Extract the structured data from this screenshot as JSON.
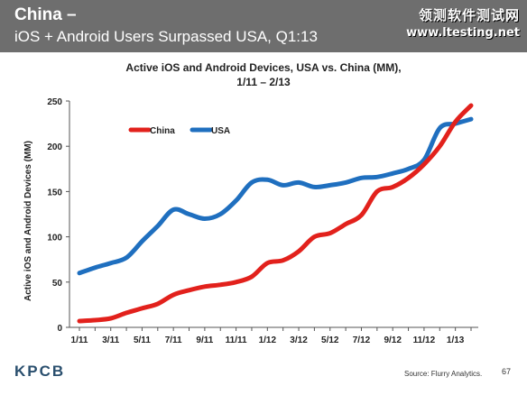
{
  "header": {
    "title": "China –",
    "subtitle": "iOS + Android Users Surpassed USA, Q1:13",
    "background": "#6e6e6e"
  },
  "watermark": {
    "line1": "领测软件测试网",
    "line2": "www.ltesting.net"
  },
  "footer": {
    "logo": "KPCB",
    "source": "Source: Flurry Analytics.",
    "page": "67"
  },
  "chart_data": {
    "type": "line",
    "title_line1": "Active iOS and Android Devices, USA vs. China (MM),",
    "title_line2": "1/11 – 2/13",
    "xlabel": "",
    "ylabel": "Active iOS and Android Devices (MM)",
    "ylim": [
      0,
      250
    ],
    "yticks": [
      0,
      50,
      100,
      150,
      200,
      250
    ],
    "categories": [
      "1/11",
      "2/11",
      "3/11",
      "4/11",
      "5/11",
      "6/11",
      "7/11",
      "8/11",
      "9/11",
      "10/11",
      "11/11",
      "12/11",
      "1/12",
      "2/12",
      "3/12",
      "4/12",
      "5/12",
      "6/12",
      "7/12",
      "8/12",
      "9/12",
      "10/12",
      "11/12",
      "12/12",
      "1/13",
      "2/13"
    ],
    "tick_labels": [
      "1/11",
      "3/11",
      "5/11",
      "7/11",
      "9/11",
      "11/11",
      "1/12",
      "3/12",
      "5/12",
      "7/12",
      "9/12",
      "11/12",
      "1/13"
    ],
    "grid": false,
    "legend_position": "top-left",
    "series": [
      {
        "name": "China",
        "color": "#e2211c",
        "values": [
          7,
          8,
          10,
          16,
          21,
          26,
          36,
          41,
          45,
          47,
          50,
          56,
          71,
          74,
          84,
          100,
          104,
          114,
          124,
          150,
          155,
          165,
          180,
          200,
          227,
          245
        ]
      },
      {
        "name": "USA",
        "color": "#1f6fbf",
        "values": [
          60,
          66,
          71,
          77,
          95,
          112,
          130,
          125,
          120,
          125,
          140,
          160,
          163,
          157,
          160,
          155,
          157,
          160,
          165,
          166,
          170,
          175,
          185,
          220,
          225,
          230
        ]
      }
    ]
  }
}
